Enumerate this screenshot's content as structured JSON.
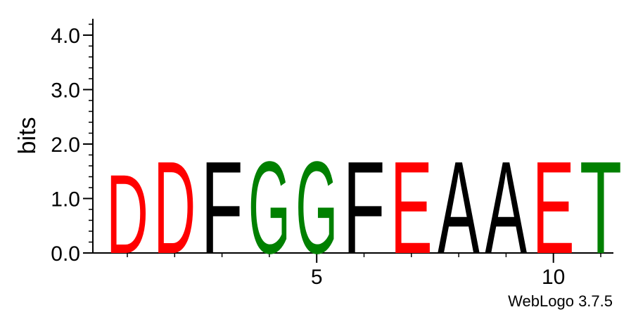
{
  "chart_data": {
    "type": "sequence-logo",
    "ylabel": "bits",
    "ylim": [
      0,
      4.3
    ],
    "yticks": [
      {
        "value": 0.0,
        "label": "0.0"
      },
      {
        "value": 1.0,
        "label": "1.0"
      },
      {
        "value": 2.0,
        "label": "2.0"
      },
      {
        "value": 3.0,
        "label": "3.0"
      },
      {
        "value": 4.0,
        "label": "4.0"
      }
    ],
    "xlim": [
      0.5,
      11.5
    ],
    "xticks": [
      {
        "value": 5,
        "label": "5"
      },
      {
        "value": 10,
        "label": "10"
      }
    ],
    "positions": [
      {
        "position": 1,
        "letter": "D",
        "bits": 1.48,
        "color": "#ff0000"
      },
      {
        "position": 2,
        "letter": "D",
        "bits": 1.73,
        "color": "#ff0000"
      },
      {
        "position": 3,
        "letter": "F",
        "bits": 1.73,
        "color": "#000000"
      },
      {
        "position": 4,
        "letter": "G",
        "bits": 1.73,
        "color": "#008000"
      },
      {
        "position": 5,
        "letter": "G",
        "bits": 1.73,
        "color": "#008000"
      },
      {
        "position": 6,
        "letter": "F",
        "bits": 1.73,
        "color": "#000000"
      },
      {
        "position": 7,
        "letter": "E",
        "bits": 1.73,
        "color": "#ff0000"
      },
      {
        "position": 8,
        "letter": "A",
        "bits": 1.73,
        "color": "#000000"
      },
      {
        "position": 9,
        "letter": "A",
        "bits": 1.73,
        "color": "#000000"
      },
      {
        "position": 10,
        "letter": "E",
        "bits": 1.73,
        "color": "#ff0000"
      },
      {
        "position": 11,
        "letter": "T",
        "bits": 1.73,
        "color": "#008000"
      }
    ]
  },
  "footer": {
    "text": "WebLogo 3.7.5"
  }
}
